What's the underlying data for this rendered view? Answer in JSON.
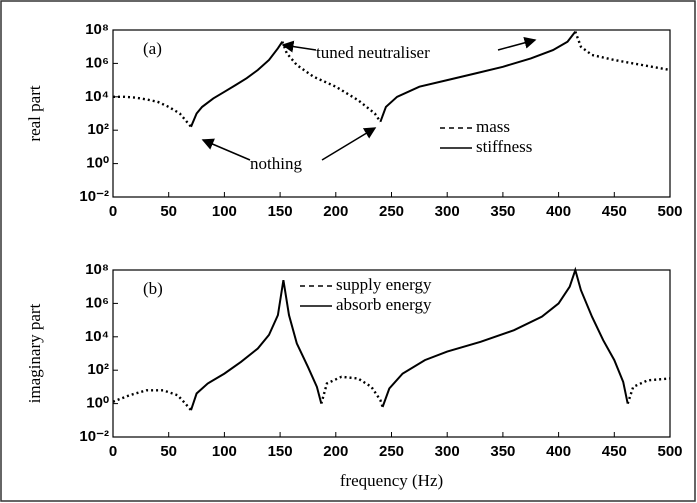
{
  "chart_data": [
    {
      "type": "line",
      "label": "(a)",
      "ylabel": "real part",
      "log_y": true,
      "legend": "center right",
      "xlim": [
        0,
        500
      ],
      "xticks": [
        0,
        50,
        100,
        150,
        200,
        250,
        300,
        350,
        400,
        450,
        500
      ],
      "ylim": [
        0.01,
        100000000
      ],
      "yticks": [
        {
          "value": 0.01,
          "label": "10⁻²"
        },
        {
          "value": 1,
          "label": "10⁰"
        },
        {
          "value": 100,
          "label": "10²"
        },
        {
          "value": 10000,
          "label": "10⁴"
        },
        {
          "value": 1000000,
          "label": "10⁶"
        },
        {
          "value": 100000000,
          "label": "10⁸"
        }
      ],
      "annotations": [
        "tuned neutraliser",
        "nothing"
      ],
      "series": [
        {
          "name": "mass",
          "color": "#000000",
          "dash": "dotted",
          "x": [
            0,
            10,
            20,
            30,
            40,
            50,
            60,
            65,
            70,
            null,
            152,
            156,
            165,
            180,
            200,
            220,
            235,
            240,
            null,
            415,
            420,
            430,
            450,
            475,
            500
          ],
          "values": [
            10000.0,
            10000.0,
            9000.0,
            7000.0,
            5000.0,
            2500.0,
            1000.0,
            400.0,
            160.0,
            null,
            20000000.0,
            4000000.0,
            800000.0,
            160000.0,
            40000.0,
            6300.0,
            1000.0,
            320.0,
            null,
            80000000.0,
            10000000.0,
            3200000.0,
            1600000.0,
            800000.0,
            400000.0
          ]
        },
        {
          "name": "stiffness",
          "color": "#000000",
          "dash": "solid",
          "x": [
            70,
            75,
            80,
            90,
            100,
            110,
            120,
            130,
            140,
            148,
            152,
            null,
            240,
            245,
            255,
            275,
            300,
            325,
            350,
            375,
            395,
            408,
            415
          ],
          "values": [
            160.0,
            1000.0,
            2500.0,
            8000.0,
            20000.0,
            50000.0,
            130000.0,
            400000.0,
            1600000.0,
            8000000.0,
            20000000.0,
            null,
            320.0,
            2500.0,
            10000.0,
            40000.0,
            100000.0,
            250000.0,
            630000.0,
            2000000.0,
            6300000.0,
            20000000.0,
            80000000.0
          ]
        }
      ]
    },
    {
      "type": "line",
      "label": "(b)",
      "ylabel": "imaginary part",
      "xlabel": "frequency (Hz)",
      "log_y": true,
      "legend": "upper center",
      "xlim": [
        0,
        500
      ],
      "xticks": [
        0,
        50,
        100,
        150,
        200,
        250,
        300,
        350,
        400,
        450,
        500
      ],
      "ylim": [
        0.01,
        100000000
      ],
      "yticks": [
        {
          "value": 0.01,
          "label": "10⁻²"
        },
        {
          "value": 1,
          "label": "10⁰"
        },
        {
          "value": 100,
          "label": "10²"
        },
        {
          "value": 10000,
          "label": "10⁴"
        },
        {
          "value": 1000000,
          "label": "10⁶"
        },
        {
          "value": 100000000,
          "label": "10⁸"
        }
      ],
      "series": [
        {
          "name": "supply energy",
          "color": "#000000",
          "dash": "dotted",
          "x": [
            0,
            15,
            30,
            45,
            58,
            65,
            70,
            null,
            187,
            192,
            205,
            220,
            232,
            240,
            242,
            null,
            462,
            467,
            480,
            500
          ],
          "values": [
            1.3,
            3.2,
            6.3,
            6.3,
            3.2,
            1,
            0.4,
            null,
            1,
            16,
            40,
            32,
            10,
            1.6,
            0.63,
            null,
            1,
            10,
            25,
            32
          ]
        },
        {
          "name": "absorb energy",
          "color": "#000000",
          "dash": "solid",
          "x": [
            70,
            75,
            85,
            100,
            115,
            130,
            140,
            148,
            153,
            158,
            165,
            175,
            183,
            187,
            null,
            242,
            248,
            260,
            280,
            300,
            330,
            360,
            385,
            400,
            410,
            415,
            420,
            430,
            440,
            450,
            458,
            462
          ],
          "values": [
            0.4,
            4,
            16,
            63,
            320,
            2000,
            13000.0,
            200000.0,
            25000000.0,
            200000.0,
            4000.0,
            160,
            10,
            1,
            null,
            0.63,
            8,
            63,
            400,
            1300.0,
            5000.0,
            25000.0,
            160000.0,
            1000000.0,
            10000000.0,
            100000000.0,
            6300000.0,
            160000.0,
            6300.0,
            400,
            20,
            1
          ]
        }
      ]
    }
  ]
}
